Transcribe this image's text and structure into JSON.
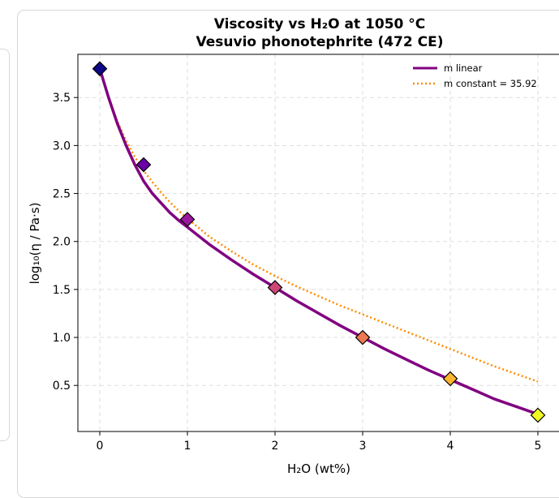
{
  "chart_data": {
    "type": "line",
    "title": "Viscosity vs H₂O at 1050 °C",
    "subtitle": "Vesuvio phonotephrite (472 CE)",
    "xlabel": "H₂O (wt%)",
    "ylabel": "log₁₀(η / Pa·s)",
    "xlim": [
      -0.25,
      5.25
    ],
    "ylim": [
      0.02,
      3.95
    ],
    "xticks": [
      0,
      1,
      2,
      3,
      4,
      5
    ],
    "yticks": [
      0.5,
      1.0,
      1.5,
      2.0,
      2.5,
      3.0,
      3.5
    ],
    "grid": true,
    "legend_position": "top-right",
    "series": [
      {
        "name": "m linear",
        "style": "solid",
        "color": "#800080",
        "x": [
          0,
          0.1,
          0.2,
          0.3,
          0.4,
          0.5,
          0.6,
          0.7,
          0.8,
          0.9,
          1.0,
          1.25,
          1.5,
          1.75,
          2.0,
          2.25,
          2.5,
          2.75,
          3.0,
          3.25,
          3.5,
          3.75,
          4.0,
          4.25,
          4.5,
          4.75,
          5.0
        ],
        "y": [
          3.8,
          3.5,
          3.23,
          3.0,
          2.8,
          2.63,
          2.5,
          2.4,
          2.3,
          2.22,
          2.15,
          1.97,
          1.81,
          1.66,
          1.52,
          1.38,
          1.25,
          1.12,
          1.0,
          0.88,
          0.77,
          0.66,
          0.56,
          0.46,
          0.36,
          0.28,
          0.2
        ]
      },
      {
        "name": "m constant = 35.92",
        "style": "dotted",
        "color": "#ff8c00",
        "x": [
          0,
          0.1,
          0.2,
          0.3,
          0.4,
          0.5,
          0.6,
          0.7,
          0.8,
          0.9,
          1.0,
          1.25,
          1.5,
          1.75,
          2.0,
          2.25,
          2.5,
          2.75,
          3.0,
          3.25,
          3.5,
          3.75,
          4.0,
          4.25,
          4.5,
          4.75,
          5.0
        ],
        "y": [
          3.8,
          3.5,
          3.25,
          3.05,
          2.88,
          2.74,
          2.62,
          2.51,
          2.41,
          2.32,
          2.24,
          2.05,
          1.9,
          1.76,
          1.64,
          1.53,
          1.43,
          1.33,
          1.24,
          1.15,
          1.06,
          0.97,
          0.88,
          0.79,
          0.7,
          0.62,
          0.54
        ]
      }
    ],
    "points": {
      "marker": "diamond",
      "x": [
        0,
        0.5,
        1,
        2,
        3,
        4,
        5
      ],
      "y": [
        3.8,
        2.8,
        2.23,
        1.52,
        1.0,
        0.57,
        0.19
      ],
      "colors": [
        "#0d0887",
        "#6a00a8",
        "#9c179e",
        "#cc4778",
        "#ed7953",
        "#fdb42f",
        "#f0f921"
      ]
    }
  }
}
